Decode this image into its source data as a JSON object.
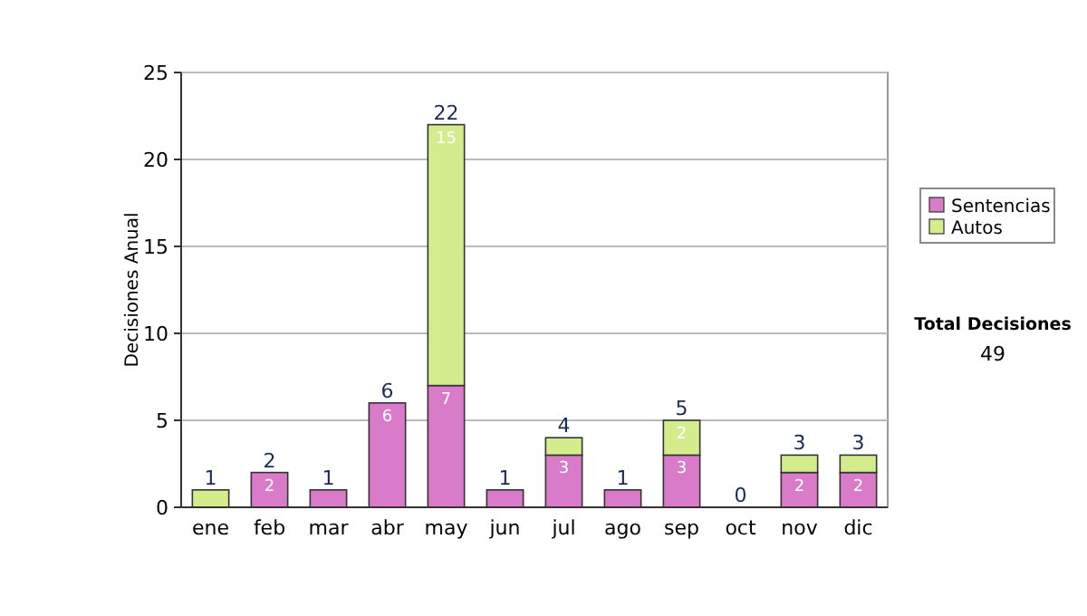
{
  "chart_data": {
    "type": "bar",
    "stacked": true,
    "ylabel": "Decisiones Anual",
    "categories": [
      "ene",
      "feb",
      "mar",
      "abr",
      "may",
      "jun",
      "jul",
      "ago",
      "sep",
      "oct",
      "nov",
      "dic"
    ],
    "series": [
      {
        "name": "Sentencias",
        "color": "#d97bc8",
        "values": [
          0,
          2,
          1,
          6,
          7,
          1,
          3,
          1,
          3,
          0,
          2,
          2
        ],
        "value_labels": [
          null,
          "2",
          null,
          "6",
          "7",
          null,
          "3",
          null,
          "3",
          null,
          "2",
          "2"
        ]
      },
      {
        "name": "Autos",
        "color": "#d4ec8c",
        "values": [
          1,
          0,
          0,
          0,
          15,
          0,
          1,
          0,
          2,
          0,
          1,
          1
        ],
        "value_labels": [
          null,
          null,
          null,
          null,
          "15",
          null,
          null,
          null,
          "2",
          null,
          null,
          null
        ]
      }
    ],
    "totals": [
      "1",
      "2",
      "1",
      "6",
      "22",
      "1",
      "4",
      "1",
      "5",
      "0",
      "3",
      "3"
    ],
    "ylim": [
      0,
      25
    ],
    "yticks": [
      0,
      5,
      10,
      15,
      20,
      25
    ],
    "grid": "y",
    "legend": "right",
    "annotations": [
      "Total Decisiones",
      "49"
    ]
  }
}
